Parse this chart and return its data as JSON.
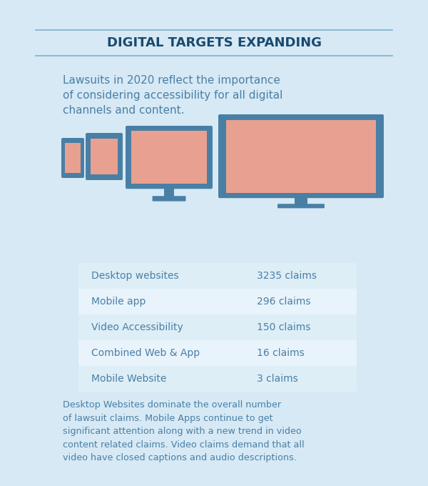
{
  "title": "DIGITAL TARGETS EXPANDING",
  "subtitle": "Lawsuits in 2020 reflect the importance\nof considering accessibility for all digital\nchannels and content.",
  "table_rows": [
    [
      "Desktop websites",
      "3235 claims"
    ],
    [
      "Mobile app",
      "296 claims"
    ],
    [
      "Video Accessibility",
      "150 claims"
    ],
    [
      "Combined Web & App",
      "16 claims"
    ],
    [
      "Mobile Website",
      "3 claims"
    ]
  ],
  "footer_text": "Desktop Websites dominate the overall number\nof lawsuit claims. Mobile Apps continue to get\nsignificant attention along with a new trend in video\ncontent related claims. Video claims demand that all\nvideo have closed captions and audio descriptions.",
  "bg_color": "#d6e9f5",
  "title_color": "#1a4a6e",
  "text_color": "#4a7fa5",
  "table_bg_light": "#ddeef7",
  "table_bg_dark": "#c8dff0",
  "device_blue": "#4a7fa5",
  "device_salmon": "#e8a090",
  "line_color": "#7fb0cc"
}
